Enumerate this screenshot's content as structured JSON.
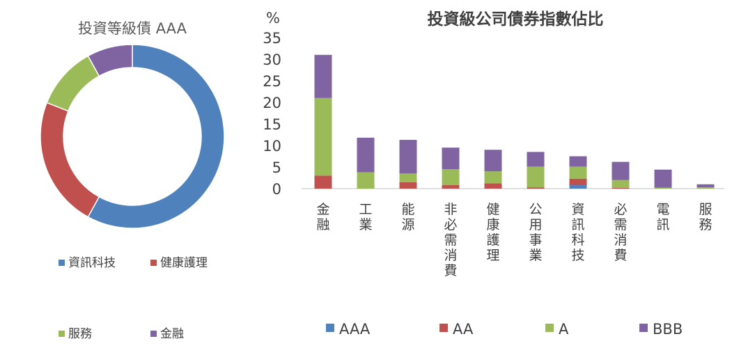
{
  "colors": {
    "AAA": "#4F81BD",
    "AA": "#C0504D",
    "A": "#9BBB59",
    "BBB": "#8064A2",
    "axis": "#BFBFBF",
    "text": "#404040"
  },
  "chart_data": [
    {
      "type": "pie",
      "style": "donut",
      "title": "投資等級債 AAA",
      "categories": [
        "資訊科技",
        "健康護理",
        "服務",
        "金融"
      ],
      "values": [
        58,
        23,
        11,
        8
      ],
      "legend_position": "bottom"
    },
    {
      "type": "bar",
      "stacked": true,
      "title": "投資級公司債券指數佔比",
      "ylabel": "%",
      "ylim": [
        0,
        35
      ],
      "yticks": [
        0,
        5,
        10,
        15,
        20,
        25,
        30,
        35
      ],
      "grid": false,
      "legend_position": "bottom",
      "categories": [
        "金融",
        "工業",
        "能源",
        "非必需消費",
        "健康護理",
        "公用事業",
        "資訊科技",
        "必需消費",
        "電訊",
        "服務"
      ],
      "series": [
        {
          "name": "AAA",
          "values": [
            0,
            0,
            0,
            0,
            0,
            0,
            0.8,
            0,
            0,
            0
          ]
        },
        {
          "name": "AA",
          "values": [
            3.0,
            0,
            1.5,
            0.8,
            1.2,
            0.3,
            1.5,
            0.2,
            0,
            0
          ]
        },
        {
          "name": "A",
          "values": [
            18.0,
            3.8,
            2.0,
            3.7,
            2.8,
            4.8,
            2.8,
            1.8,
            0.2,
            0.3
          ]
        },
        {
          "name": "BBB",
          "values": [
            10.0,
            8.0,
            7.8,
            5.0,
            5.0,
            3.4,
            2.4,
            4.2,
            4.2,
            0.7
          ]
        }
      ]
    }
  ]
}
